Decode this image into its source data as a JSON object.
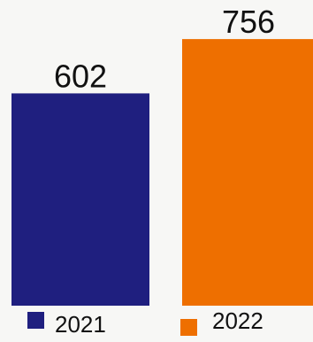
{
  "chart_data": {
    "type": "bar",
    "categories": [
      "2021",
      "2022"
    ],
    "values": [
      602,
      756
    ],
    "colors": [
      "#1f1f7f",
      "#ee6f00"
    ],
    "ylim": [
      0,
      790
    ],
    "grid": false,
    "legend": {
      "placement": "bottom",
      "entries": [
        "2021",
        "2022"
      ]
    }
  }
}
